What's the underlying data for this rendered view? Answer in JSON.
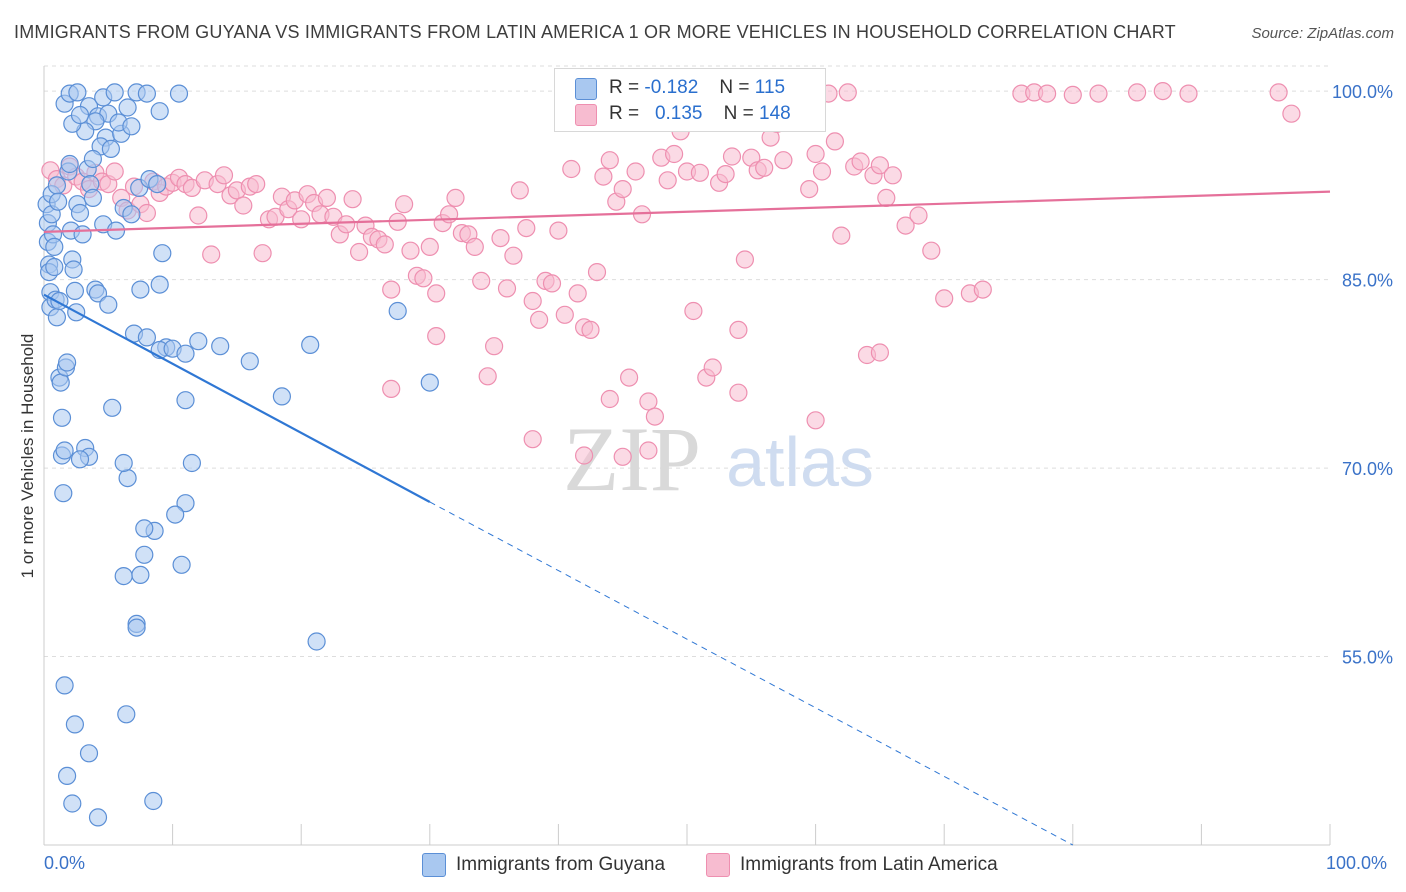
{
  "title": "IMMIGRANTS FROM GUYANA VS IMMIGRANTS FROM LATIN AMERICA 1 OR MORE VEHICLES IN HOUSEHOLD CORRELATION CHART",
  "source": "Source: ZipAtlas.com",
  "watermark": {
    "zip": "ZIP",
    "atlas": "atlas"
  },
  "legend": {
    "rows": [
      {
        "r_label": "R =",
        "r_value": "-0.182",
        "n_label": "N =",
        "n_value": "115"
      },
      {
        "r_label": "R =",
        "r_value": "0.135",
        "n_label": "N =",
        "n_value": "148"
      }
    ]
  },
  "bottom_legend": {
    "guyana": "Immigrants from Guyana",
    "latin": "Immigrants from Latin America"
  },
  "colors": {
    "guyana_fill": "#a9c8f0",
    "guyana_stroke": "#5b8fd6",
    "guyana_line": "#2f77d4",
    "latin_fill": "#f7bcd0",
    "latin_stroke": "#ee8fb0",
    "latin_line": "#e5709a",
    "tick_text": "#3a72c8",
    "grid": "#dddddd"
  },
  "chart_data": {
    "type": "scatter",
    "title": "IMMIGRANTS FROM GUYANA VS IMMIGRANTS FROM LATIN AMERICA 1 OR MORE VEHICLES IN HOUSEHOLD CORRELATION CHART",
    "xlabel": "",
    "ylabel": "1 or more Vehicles in Household",
    "xlim": [
      0,
      100
    ],
    "ylim": [
      40,
      102
    ],
    "x_tick_labels": [
      "0.0%",
      "100.0%"
    ],
    "y_ticks": [
      55,
      70,
      85,
      100
    ],
    "y_tick_labels": [
      "55.0%",
      "70.0%",
      "85.0%",
      "100.0%"
    ],
    "grid": true,
    "legend_placement": "top-center",
    "series": [
      {
        "name": "Immigrants from Guyana",
        "r": -0.182,
        "n": 115,
        "trend": {
          "x0": 0,
          "y0": 83.8,
          "x1": 30,
          "y1": 67.3,
          "dashed_to_x": 80,
          "dashed_to_y": 40
        },
        "points": [
          [
            0.2,
            91.0
          ],
          [
            0.3,
            89.5
          ],
          [
            0.3,
            88.0
          ],
          [
            0.4,
            86.2
          ],
          [
            0.4,
            85.6
          ],
          [
            0.5,
            84.0
          ],
          [
            0.5,
            82.8
          ],
          [
            0.6,
            91.8
          ],
          [
            0.6,
            90.2
          ],
          [
            0.7,
            88.6
          ],
          [
            0.8,
            87.6
          ],
          [
            0.8,
            86.0
          ],
          [
            0.9,
            83.4
          ],
          [
            1.0,
            82.0
          ],
          [
            1.0,
            92.5
          ],
          [
            1.1,
            91.2
          ],
          [
            1.2,
            77.2
          ],
          [
            1.3,
            76.8
          ],
          [
            1.4,
            74.0
          ],
          [
            1.4,
            71.0
          ],
          [
            1.5,
            68.0
          ],
          [
            1.6,
            71.4
          ],
          [
            1.7,
            78.0
          ],
          [
            1.8,
            78.4
          ],
          [
            1.9,
            93.6
          ],
          [
            2.0,
            94.2
          ],
          [
            2.1,
            88.9
          ],
          [
            2.2,
            86.6
          ],
          [
            2.3,
            85.8
          ],
          [
            2.4,
            84.1
          ],
          [
            2.5,
            82.4
          ],
          [
            2.6,
            91.0
          ],
          [
            2.8,
            90.3
          ],
          [
            3.0,
            88.6
          ],
          [
            3.2,
            71.6
          ],
          [
            3.4,
            93.8
          ],
          [
            3.6,
            92.6
          ],
          [
            3.8,
            91.5
          ],
          [
            4.0,
            84.2
          ],
          [
            4.2,
            83.9
          ],
          [
            3.5,
            98.8
          ],
          [
            4.2,
            98.0
          ],
          [
            4.6,
            99.5
          ],
          [
            5.0,
            98.2
          ],
          [
            5.5,
            99.9
          ],
          [
            4.0,
            97.6
          ],
          [
            4.8,
            96.3
          ],
          [
            3.2,
            96.8
          ],
          [
            2.2,
            97.4
          ],
          [
            2.8,
            98.1
          ],
          [
            1.6,
            99.0
          ],
          [
            2.0,
            99.8
          ],
          [
            2.6,
            99.9
          ],
          [
            4.4,
            95.6
          ],
          [
            3.8,
            94.6
          ],
          [
            5.2,
            95.4
          ],
          [
            6.0,
            96.6
          ],
          [
            6.5,
            98.7
          ],
          [
            7.2,
            99.9
          ],
          [
            8.0,
            99.8
          ],
          [
            9.0,
            98.4
          ],
          [
            10.5,
            99.8
          ],
          [
            5.8,
            97.5
          ],
          [
            6.8,
            97.2
          ],
          [
            4.6,
            89.4
          ],
          [
            5.6,
            88.9
          ],
          [
            6.2,
            90.7
          ],
          [
            6.8,
            90.2
          ],
          [
            7.4,
            92.3
          ],
          [
            8.2,
            93.0
          ],
          [
            8.8,
            92.6
          ],
          [
            9.2,
            87.1
          ],
          [
            7.5,
            84.2
          ],
          [
            9.0,
            84.6
          ],
          [
            5.0,
            83.0
          ],
          [
            7.0,
            80.7
          ],
          [
            8.0,
            80.4
          ],
          [
            9.5,
            79.6
          ],
          [
            9.0,
            79.4
          ],
          [
            10.0,
            79.5
          ],
          [
            11.0,
            79.1
          ],
          [
            12.0,
            80.1
          ],
          [
            11.0,
            75.4
          ],
          [
            11.5,
            70.4
          ],
          [
            11.0,
            67.2
          ],
          [
            10.2,
            66.3
          ],
          [
            8.6,
            65.0
          ],
          [
            7.8,
            65.2
          ],
          [
            7.8,
            63.1
          ],
          [
            6.2,
            61.4
          ],
          [
            7.2,
            57.6
          ],
          [
            7.2,
            57.3
          ],
          [
            7.5,
            61.5
          ],
          [
            10.7,
            62.3
          ],
          [
            6.5,
            69.2
          ],
          [
            6.2,
            70.4
          ],
          [
            5.3,
            74.8
          ],
          [
            3.5,
            70.9
          ],
          [
            2.8,
            70.7
          ],
          [
            1.6,
            52.7
          ],
          [
            2.4,
            49.6
          ],
          [
            3.5,
            47.3
          ],
          [
            6.4,
            50.4
          ],
          [
            1.8,
            45.5
          ],
          [
            2.2,
            43.3
          ],
          [
            4.2,
            42.2
          ],
          [
            8.5,
            43.5
          ],
          [
            13.7,
            79.7
          ],
          [
            16.0,
            78.5
          ],
          [
            18.5,
            75.7
          ],
          [
            27.5,
            82.5
          ],
          [
            30.0,
            76.8
          ],
          [
            20.7,
            79.8
          ],
          [
            21.2,
            56.2
          ],
          [
            1.2,
            83.3
          ]
        ]
      },
      {
        "name": "Immigrants from Latin America",
        "r": 0.135,
        "n": 148,
        "trend": {
          "x0": 0,
          "y0": 88.8,
          "x1": 100,
          "y1": 92.0
        },
        "points": [
          [
            0.5,
            93.7
          ],
          [
            1.0,
            93.0
          ],
          [
            1.5,
            92.5
          ],
          [
            2.0,
            94.0
          ],
          [
            2.5,
            93.2
          ],
          [
            3.0,
            92.8
          ],
          [
            3.5,
            92.2
          ],
          [
            4.0,
            93.5
          ],
          [
            4.5,
            92.8
          ],
          [
            5.0,
            92.6
          ],
          [
            5.5,
            93.6
          ],
          [
            6.0,
            91.5
          ],
          [
            6.5,
            90.5
          ],
          [
            7.0,
            92.4
          ],
          [
            7.5,
            91.0
          ],
          [
            8.0,
            90.3
          ],
          [
            8.5,
            92.8
          ],
          [
            9.0,
            91.9
          ],
          [
            9.5,
            92.4
          ],
          [
            10.0,
            92.7
          ],
          [
            10.5,
            93.1
          ],
          [
            11.0,
            92.6
          ],
          [
            11.5,
            92.3
          ],
          [
            12.0,
            90.1
          ],
          [
            12.5,
            92.9
          ],
          [
            13.0,
            87.0
          ],
          [
            13.5,
            92.6
          ],
          [
            14.0,
            93.3
          ],
          [
            14.5,
            91.7
          ],
          [
            15.0,
            92.1
          ],
          [
            15.5,
            90.9
          ],
          [
            16.0,
            92.4
          ],
          [
            16.5,
            92.6
          ],
          [
            17.0,
            87.1
          ],
          [
            17.5,
            89.8
          ],
          [
            18.0,
            90.0
          ],
          [
            18.5,
            91.6
          ],
          [
            19.0,
            90.6
          ],
          [
            19.5,
            91.3
          ],
          [
            20.0,
            89.8
          ],
          [
            20.5,
            91.8
          ],
          [
            21.0,
            91.1
          ],
          [
            21.5,
            90.2
          ],
          [
            22.0,
            91.5
          ],
          [
            22.5,
            90.0
          ],
          [
            23.0,
            88.6
          ],
          [
            23.5,
            89.4
          ],
          [
            24.0,
            91.4
          ],
          [
            24.5,
            87.2
          ],
          [
            25.0,
            89.3
          ],
          [
            25.5,
            88.4
          ],
          [
            26.0,
            88.2
          ],
          [
            26.5,
            87.8
          ],
          [
            27.0,
            84.2
          ],
          [
            27.5,
            89.6
          ],
          [
            28.0,
            91.0
          ],
          [
            28.5,
            87.3
          ],
          [
            29.0,
            85.3
          ],
          [
            29.5,
            85.1
          ],
          [
            30.0,
            87.6
          ],
          [
            30.5,
            83.9
          ],
          [
            31.0,
            89.5
          ],
          [
            31.5,
            90.2
          ],
          [
            32.0,
            91.5
          ],
          [
            32.5,
            88.7
          ],
          [
            33.0,
            88.6
          ],
          [
            33.5,
            87.6
          ],
          [
            34.0,
            84.9
          ],
          [
            34.5,
            77.3
          ],
          [
            35.0,
            79.7
          ],
          [
            35.5,
            88.3
          ],
          [
            36.0,
            84.3
          ],
          [
            36.5,
            86.9
          ],
          [
            37.0,
            92.1
          ],
          [
            37.5,
            89.1
          ],
          [
            38.0,
            83.3
          ],
          [
            38.5,
            81.8
          ],
          [
            39.0,
            84.9
          ],
          [
            39.5,
            84.7
          ],
          [
            40.0,
            88.9
          ],
          [
            40.5,
            82.2
          ],
          [
            41.0,
            93.8
          ],
          [
            41.5,
            83.9
          ],
          [
            42.0,
            81.2
          ],
          [
            42.5,
            81.0
          ],
          [
            43.0,
            85.6
          ],
          [
            43.5,
            93.2
          ],
          [
            44.0,
            94.5
          ],
          [
            44.5,
            91.2
          ],
          [
            45.0,
            92.2
          ],
          [
            45.5,
            77.2
          ],
          [
            46.0,
            93.6
          ],
          [
            46.5,
            90.2
          ],
          [
            47.0,
            75.3
          ],
          [
            47.5,
            74.1
          ],
          [
            48.0,
            94.7
          ],
          [
            48.5,
            92.9
          ],
          [
            49.0,
            95.0
          ],
          [
            49.5,
            96.8
          ],
          [
            50.0,
            93.6
          ],
          [
            50.5,
            82.5
          ],
          [
            51.0,
            93.5
          ],
          [
            51.5,
            77.2
          ],
          [
            52.0,
            78.0
          ],
          [
            52.5,
            92.7
          ],
          [
            53.0,
            93.4
          ],
          [
            53.5,
            94.8
          ],
          [
            54.0,
            81.0
          ],
          [
            54.5,
            86.6
          ],
          [
            55.0,
            94.7
          ],
          [
            55.5,
            93.7
          ],
          [
            56.0,
            93.9
          ],
          [
            56.5,
            96.3
          ],
          [
            57.0,
            97.4
          ],
          [
            57.5,
            94.5
          ],
          [
            58.0,
            98.8
          ],
          [
            58.5,
            99.6
          ],
          [
            59.0,
            99.9
          ],
          [
            59.5,
            92.2
          ],
          [
            60.0,
            95.0
          ],
          [
            60.5,
            93.6
          ],
          [
            61.0,
            99.8
          ],
          [
            61.5,
            96.0
          ],
          [
            62.0,
            88.5
          ],
          [
            62.5,
            99.9
          ],
          [
            63.0,
            94.0
          ],
          [
            63.5,
            94.4
          ],
          [
            64.0,
            79.0
          ],
          [
            64.5,
            93.3
          ],
          [
            65.0,
            94.1
          ],
          [
            65.5,
            91.5
          ],
          [
            66.0,
            93.3
          ],
          [
            67.0,
            89.3
          ],
          [
            68.0,
            90.1
          ],
          [
            69.0,
            87.3
          ],
          [
            70.0,
            83.5
          ],
          [
            72.0,
            83.9
          ],
          [
            73.0,
            84.2
          ],
          [
            76.0,
            99.8
          ],
          [
            77.0,
            99.9
          ],
          [
            78.0,
            99.8
          ],
          [
            80.0,
            99.7
          ],
          [
            82.0,
            99.8
          ],
          [
            85.0,
            99.9
          ],
          [
            87.0,
            100.0
          ],
          [
            89.0,
            99.8
          ],
          [
            96.0,
            99.9
          ],
          [
            97.0,
            98.2
          ],
          [
            38.0,
            72.3
          ],
          [
            42.0,
            71.0
          ],
          [
            27.0,
            76.3
          ],
          [
            30.5,
            80.5
          ],
          [
            44.0,
            75.5
          ],
          [
            45.0,
            70.9
          ],
          [
            47.0,
            71.4
          ],
          [
            54.0,
            76.0
          ],
          [
            60.0,
            73.8
          ],
          [
            65.0,
            79.2
          ]
        ]
      }
    ]
  }
}
